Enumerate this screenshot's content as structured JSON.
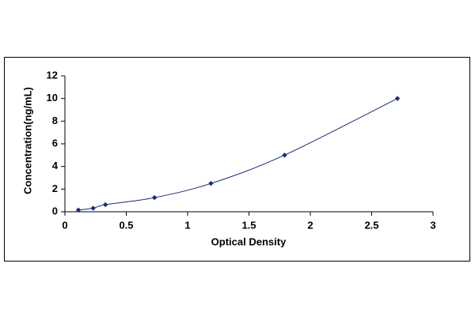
{
  "chart_data": {
    "type": "scatter",
    "x_label": "Optical Density",
    "y_label": "Concentration(ng/mL)",
    "x": [
      0.11,
      0.23,
      0.33,
      0.73,
      1.19,
      1.79,
      2.71
    ],
    "series": [
      {
        "color": "#1a2a7a",
        "values": [
          0.156,
          0.312,
          0.625,
          1.25,
          2.5,
          5,
          10
        ]
      }
    ],
    "xlim": [
      0,
      3
    ],
    "xticks": [
      0,
      0.5,
      1,
      1.5,
      2,
      2.5,
      3
    ],
    "ylim": [
      0,
      12
    ],
    "yticks": [
      0,
      2,
      4,
      6,
      8,
      10,
      12
    ],
    "grid": false
  }
}
